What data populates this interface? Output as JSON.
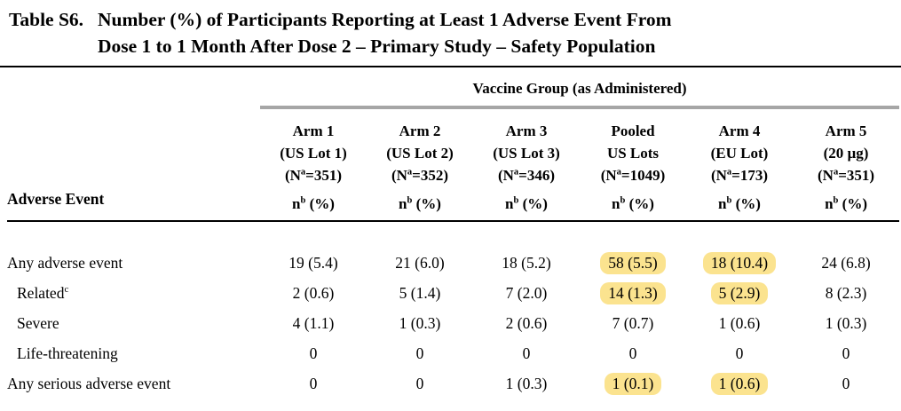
{
  "title": {
    "label": "Table S6.",
    "line1": "Number (%) of Participants Reporting at Least 1 Adverse Event From",
    "line2": "Dose 1 to 1 Month After Dose 2 – Primary Study – Safety Population"
  },
  "colors": {
    "highlight_yellow": "#fbe38f",
    "gray_rule": "#a6a6a6",
    "black_rule": "#000000"
  },
  "chart_data": {
    "type": "table",
    "title": "Table S6. Number (%) of Participants Reporting at Least 1 Adverse Event From Dose 1 to 1 Month After Dose 2 – Primary Study – Safety Population",
    "group_header": "Vaccine Group (as Administered)",
    "row_header": "Adverse Event",
    "columns": [
      {
        "line1": "Arm 1",
        "line2": "(US Lot 1)",
        "line3": "(N^a=351)",
        "line4": "n^b (%)"
      },
      {
        "line1": "Arm 2",
        "line2": "(US Lot 2)",
        "line3": "(N^a=352)",
        "line4": "n^b (%)"
      },
      {
        "line1": "Arm 3",
        "line2": "(US Lot 3)",
        "line3": "(N^a=346)",
        "line4": "n^b (%)"
      },
      {
        "line1": "Pooled",
        "line2": "US Lots",
        "line3": "(N^a=1049)",
        "line4": "n^b (%)"
      },
      {
        "line1": "Arm 4",
        "line2": "(EU Lot)",
        "line3": "(N^a=173)",
        "line4": "n^b (%)"
      },
      {
        "line1": "Arm 5",
        "line2": "(20 µg)",
        "line3": "(N^a=351)",
        "line4": "n^b (%)"
      }
    ],
    "rows": [
      {
        "label": "Any adverse event",
        "indent": false,
        "values": [
          {
            "text": "19 (5.4)",
            "highlight": false
          },
          {
            "text": "21 (6.0)",
            "highlight": false
          },
          {
            "text": "18 (5.2)",
            "highlight": false
          },
          {
            "text": "58 (5.5)",
            "highlight": true
          },
          {
            "text": "18 (10.4)",
            "highlight": true
          },
          {
            "text": "24 (6.8)",
            "highlight": false
          }
        ]
      },
      {
        "label": "Related^c",
        "indent": true,
        "values": [
          {
            "text": "2 (0.6)",
            "highlight": false
          },
          {
            "text": "5 (1.4)",
            "highlight": false
          },
          {
            "text": "7 (2.0)",
            "highlight": false
          },
          {
            "text": "14 (1.3)",
            "highlight": true
          },
          {
            "text": "5 (2.9)",
            "highlight": true
          },
          {
            "text": "8 (2.3)",
            "highlight": false
          }
        ]
      },
      {
        "label": "Severe",
        "indent": true,
        "values": [
          {
            "text": "4 (1.1)",
            "highlight": false
          },
          {
            "text": "1 (0.3)",
            "highlight": false
          },
          {
            "text": "2 (0.6)",
            "highlight": false
          },
          {
            "text": "7 (0.7)",
            "highlight": false
          },
          {
            "text": "1 (0.6)",
            "highlight": false
          },
          {
            "text": "1 (0.3)",
            "highlight": false
          }
        ]
      },
      {
        "label": "Life-threatening",
        "indent": true,
        "values": [
          {
            "text": "0",
            "highlight": false
          },
          {
            "text": "0",
            "highlight": false
          },
          {
            "text": "0",
            "highlight": false
          },
          {
            "text": "0",
            "highlight": false
          },
          {
            "text": "0",
            "highlight": false
          },
          {
            "text": "0",
            "highlight": false
          }
        ]
      },
      {
        "label": "Any serious adverse event",
        "indent": false,
        "values": [
          {
            "text": "0",
            "highlight": false
          },
          {
            "text": "0",
            "highlight": false
          },
          {
            "text": "1 (0.3)",
            "highlight": false
          },
          {
            "text": "1 (0.1)",
            "highlight": true
          },
          {
            "text": "1 (0.6)",
            "highlight": true
          },
          {
            "text": "0",
            "highlight": false
          }
        ]
      }
    ]
  }
}
